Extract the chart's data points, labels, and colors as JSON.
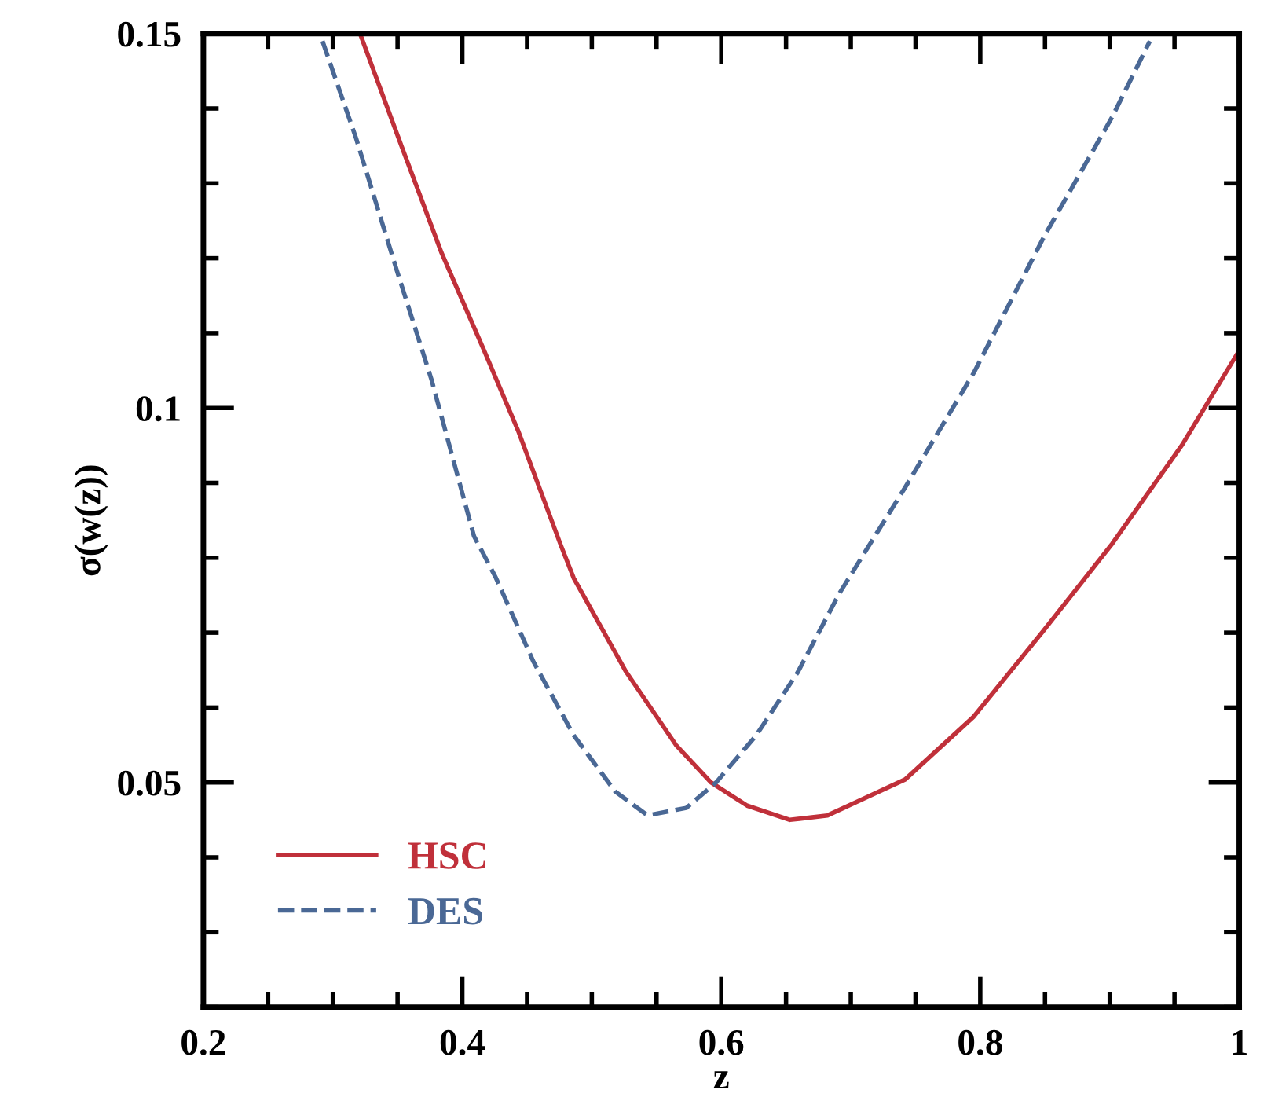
{
  "chart_data": {
    "type": "line",
    "xlabel": "z",
    "ylabel": "σ(w(z))",
    "xlim": [
      0.2,
      1.0
    ],
    "ylim": [
      0.02,
      0.15
    ],
    "xticks": [
      0.2,
      0.4,
      0.6,
      0.8,
      1
    ],
    "yticks": [
      0.05,
      0.1,
      0.15
    ],
    "grid": false,
    "legend": "bottom left",
    "series": [
      {
        "name": "HSC",
        "color": "#c0303a",
        "line_style": "solid",
        "x": [
          0.321,
          0.353,
          0.384,
          0.416,
          0.443,
          0.476,
          0.486,
          0.526,
          0.565,
          0.592,
          0.62,
          0.653,
          0.682,
          0.742,
          0.795,
          0.849,
          0.902,
          0.956,
          0.999
        ],
        "values": [
          0.15,
          0.135,
          0.1207,
          0.108,
          0.097,
          0.0817,
          0.0773,
          0.0649,
          0.055,
          0.05,
          0.0469,
          0.045,
          0.0456,
          0.0504,
          0.0588,
          0.0703,
          0.0819,
          0.0951,
          0.1074
        ]
      },
      {
        "name": "DES",
        "color": "#4a6895",
        "line_style": "dashed",
        "x": [
          0.292,
          0.318,
          0.349,
          0.376,
          0.409,
          0.426,
          0.455,
          0.486,
          0.518,
          0.543,
          0.573,
          0.596,
          0.627,
          0.659,
          0.691,
          0.742,
          0.795,
          0.849,
          0.902,
          0.931
        ],
        "values": [
          0.149,
          0.136,
          0.1186,
          0.1039,
          0.0829,
          0.0773,
          0.0661,
          0.0563,
          0.0488,
          0.0456,
          0.0466,
          0.05,
          0.0563,
          0.0647,
          0.0752,
          0.0894,
          0.1047,
          0.1228,
          0.1389,
          0.149
        ]
      }
    ]
  }
}
